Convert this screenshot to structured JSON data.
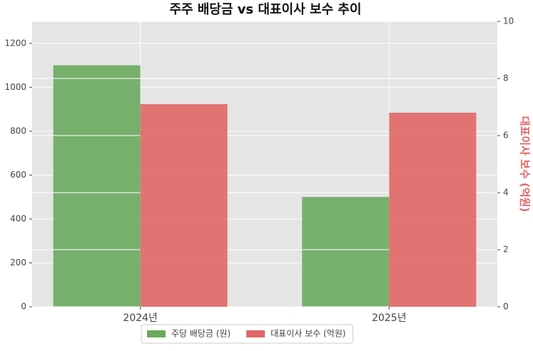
{
  "chart_data": {
    "type": "bar",
    "title": "주주 배당금 vs 대표이사 보수 추이",
    "categories": [
      "2024년",
      "2025년"
    ],
    "series": [
      {
        "name": "주당 배당금 (원)",
        "color": "#6aaa5e",
        "values": [
          1100,
          500
        ]
      },
      {
        "name": "대표이사 보수 (억원)",
        "color": "#e06666",
        "values": [
          7.1,
          6.8
        ],
        "axis": "y2"
      }
    ],
    "ylim": [
      0,
      1300
    ],
    "yticks": [
      0,
      200,
      400,
      600,
      800,
      1000,
      1200
    ],
    "y2lim": [
      0,
      10
    ],
    "y2ticks": [
      0,
      2,
      4,
      6,
      8,
      10
    ],
    "y2label": "대표이사 보수 (억원)",
    "grid": true,
    "legend": "bottom"
  }
}
